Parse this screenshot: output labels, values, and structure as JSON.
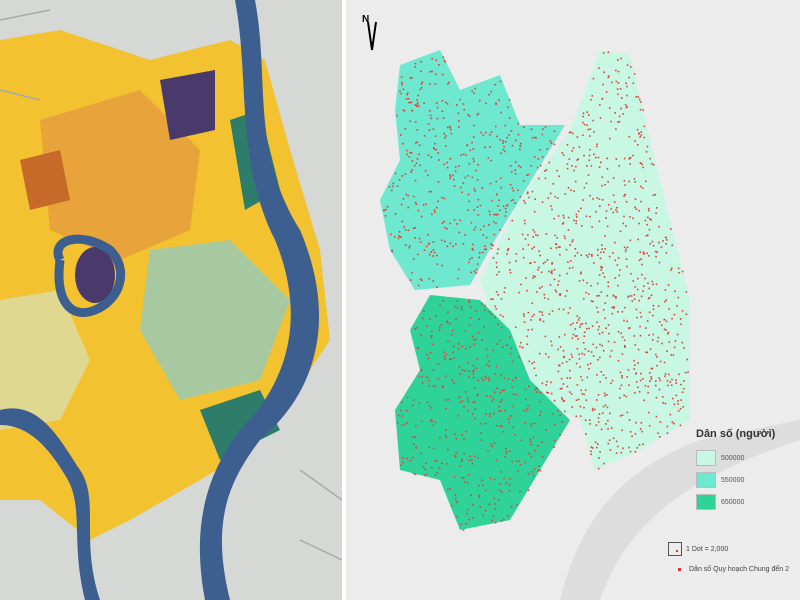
{
  "left_map": {
    "river_color": "#3d5f8f",
    "landuse_colors": [
      "#f2c230",
      "#e8a33a",
      "#c66a2a",
      "#4a3a6b",
      "#2e7d6a",
      "#a8c9a0",
      "#e0d890"
    ]
  },
  "right_map": {
    "north_label": "N",
    "legend": {
      "title": "Dân số (người)",
      "classes": [
        {
          "label": "500000",
          "color": "#c8f7e4"
        },
        {
          "label": "550000",
          "color": "#6ee8cf"
        },
        {
          "label": "650000",
          "color": "#2fd39a"
        }
      ],
      "dot_label": "1 Dot = 2,000",
      "dot_series_label": "Dân số Quy hoạch Chung đến 2",
      "dot_color": "#d8453a"
    }
  }
}
